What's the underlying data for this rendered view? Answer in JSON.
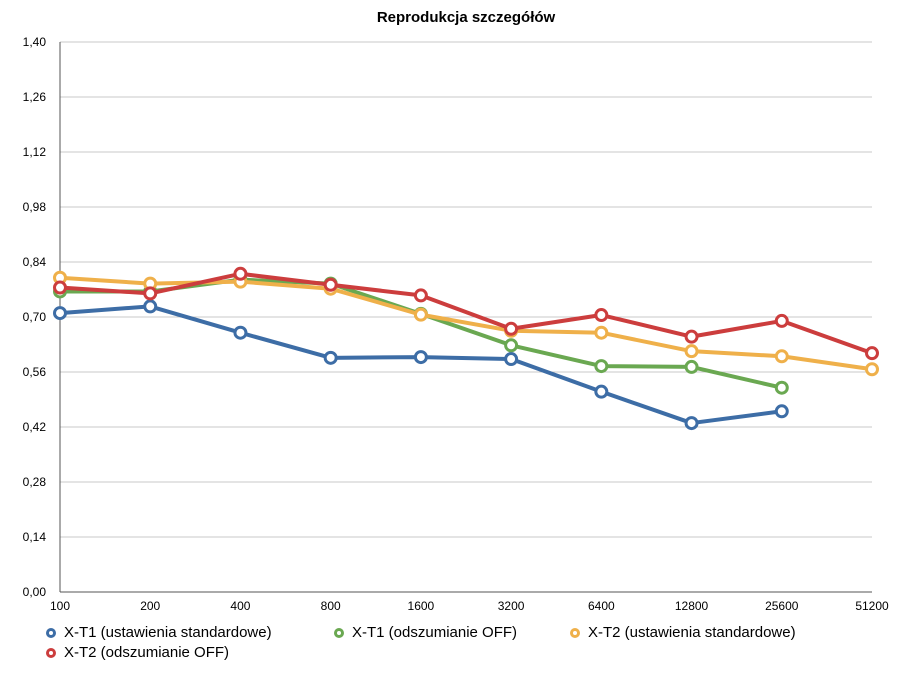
{
  "chart_data": {
    "type": "line",
    "title": "Reprodukcja szczegółów",
    "categories": [
      "100",
      "200",
      "400",
      "800",
      "1600",
      "3200",
      "6400",
      "12800",
      "25600",
      "51200"
    ],
    "y_ticks": [
      "0,00",
      "0,14",
      "0,28",
      "0,42",
      "0,56",
      "0,70",
      "0,84",
      "0,98",
      "1,12",
      "1,26",
      "1,40"
    ],
    "ylim": [
      0,
      1.4
    ],
    "grid": true,
    "legend_position": "bottom",
    "series": [
      {
        "name": "X-T1 (ustawienia standardowe)",
        "color": "#3d6da6",
        "values": [
          0.71,
          0.727,
          0.66,
          0.596,
          0.598,
          0.593,
          0.51,
          0.43,
          0.46,
          null
        ]
      },
      {
        "name": "X-T1 (odszumianie OFF)",
        "color": "#6aa851",
        "values": [
          0.765,
          0.765,
          0.795,
          0.785,
          0.708,
          0.628,
          0.575,
          0.573,
          0.52,
          null
        ]
      },
      {
        "name": "X-T2 (ustawienia standardowe)",
        "color": "#efb04a",
        "values": [
          0.8,
          0.785,
          0.79,
          0.772,
          0.706,
          0.665,
          0.66,
          0.613,
          0.6,
          0.567
        ]
      },
      {
        "name": "X-T2 (odszumianie OFF)",
        "color": "#cc3d3d",
        "values": [
          0.775,
          0.76,
          0.81,
          0.782,
          0.755,
          0.67,
          0.705,
          0.65,
          0.69,
          0.608
        ]
      }
    ]
  }
}
